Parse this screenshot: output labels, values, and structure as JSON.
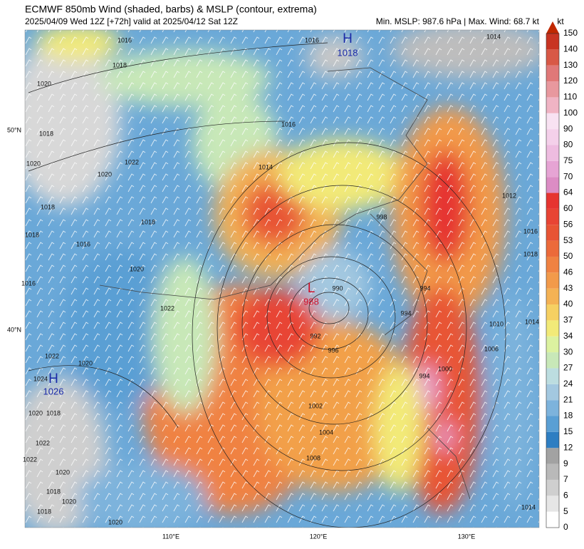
{
  "header": {
    "title": "ECMWF 850mb Wind (shaded, barbs) & MSLP (contour, extrema)",
    "subtitle": "2025/04/09 Wed 12Z [+72h] valid at 2025/04/12 Sat 12Z",
    "stats": "Min. MSLP: 987.6 hPa | Max. Wind: 68.7 kt"
  },
  "colorbar": {
    "unit": "kt",
    "levels": [
      0,
      5,
      6,
      7,
      9,
      12,
      15,
      18,
      21,
      24,
      27,
      30,
      34,
      37,
      40,
      43,
      46,
      50,
      53,
      56,
      60,
      64,
      70,
      75,
      80,
      90,
      100,
      110,
      120,
      130,
      140,
      150
    ],
    "colors": [
      "#ffffff",
      "#e6e6e6",
      "#cfcfcf",
      "#b9b9b9",
      "#a2a2a2",
      "#2e7ec2",
      "#5a9fd4",
      "#7db3dc",
      "#a3c8e0",
      "#bcdde0",
      "#c8e8b8",
      "#dcf2a0",
      "#f2ea78",
      "#f6d062",
      "#f4b254",
      "#f29a4a",
      "#f08242",
      "#ec6a3a",
      "#e85434",
      "#e84434",
      "#e63430",
      "#dc8cc4",
      "#e6a4d4",
      "#eebce0",
      "#f4d0ea",
      "#f8e2f2",
      "#f0b4c4",
      "#e8989e",
      "#e07878",
      "#d85846",
      "#c83422"
    ]
  },
  "map": {
    "pressure_centers": [
      {
        "label": "H",
        "value": "1018"
      },
      {
        "label": "L",
        "value": "988"
      },
      {
        "label": "H",
        "value": "1026"
      }
    ],
    "lat_labels": [
      "50°N",
      "40°N"
    ],
    "lon_labels": [
      "110°E",
      "120°E",
      "130°E"
    ],
    "contour_labels": [
      "1016",
      "1018",
      "1020",
      "1018",
      "1020",
      "1022",
      "1020",
      "1018",
      "1018",
      "1016",
      "1018",
      "1020",
      "1016",
      "1022",
      "1016",
      "1014",
      "1016",
      "1014",
      "1012",
      "1016",
      "1018",
      "1010",
      "1014",
      "1006",
      "1000",
      "994",
      "994",
      "994",
      "998",
      "990",
      "992",
      "996",
      "1002",
      "1004",
      "1008",
      "1022",
      "1020",
      "1024",
      "1020",
      "1018",
      "1022",
      "1022",
      "1020",
      "1018",
      "1020",
      "1018",
      "1020",
      "1014"
    ]
  }
}
